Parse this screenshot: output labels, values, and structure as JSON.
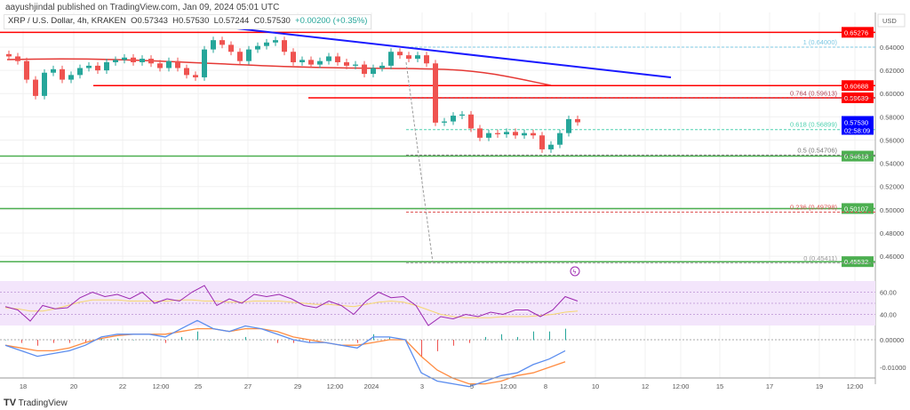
{
  "header": {
    "published": "aayushjindal published on TradingView.com, Jan 09, 2024 05:01 UTC",
    "symbol": "XRP / U.S. Dollar, 4h, KRAKEN",
    "open": "O0.57343",
    "high": "H0.57530",
    "low": "L0.57244",
    "close": "C0.57530",
    "change": "+0.00200 (+0.35%)"
  },
  "currency": "USD",
  "price_ticks": [
    "0.64000",
    "0.62000",
    "0.60000",
    "0.58000",
    "0.56000",
    "0.54000",
    "0.52000",
    "0.50000",
    "0.48000",
    "0.46000"
  ],
  "levels": [
    {
      "label": "0.65276",
      "price": 0.65276,
      "color": "#ff0000",
      "kind": "resistance"
    },
    {
      "label": "0.60688",
      "price": 0.60688,
      "color": "#ff0000",
      "kind": "resistance"
    },
    {
      "label": "0.59639",
      "price": 0.59639,
      "color": "#ff0000",
      "kind": "resistance"
    },
    {
      "label": "0.54618",
      "price": 0.54618,
      "color": "#4caf50",
      "kind": "support"
    },
    {
      "label": "0.50107",
      "price": 0.50107,
      "color": "#4caf50",
      "kind": "support"
    },
    {
      "label": "0.45532",
      "price": 0.45532,
      "color": "#4caf50",
      "kind": "support"
    }
  ],
  "fib": [
    {
      "label": "1 (0.64000)",
      "price": 0.64,
      "color": "#7ec8e3"
    },
    {
      "label": "0.764 (0.59613)",
      "price": 0.59613,
      "color": "#b24a5a"
    },
    {
      "label": "0.618 (0.56899)",
      "price": 0.56899,
      "color": "#4fd1b0"
    },
    {
      "label": "0.5 (0.54706)",
      "price": 0.54706,
      "color": "#777777"
    },
    {
      "label": "0.236 (0.49798)",
      "price": 0.49798,
      "color": "#e05555"
    },
    {
      "label": "0 (0.45411)",
      "price": 0.45411,
      "color": "#999999"
    }
  ],
  "last_price": {
    "price": "0.57530",
    "countdown": "02:58:09",
    "color": "#0000ff"
  },
  "rsi_ticks": [
    "60.00",
    "40.00"
  ],
  "macd_ticks": [
    "0.00000",
    "-0.01000"
  ],
  "time_ticks": [
    "18",
    "20",
    "22",
    "12:00",
    "25",
    "27",
    "29",
    "12:00",
    "2024",
    "3",
    "5",
    "12:00",
    "8",
    "10",
    "12",
    "12:00",
    "15",
    "17",
    "19",
    "12:00"
  ],
  "closes": [
    0.632,
    0.628,
    0.612,
    0.598,
    0.618,
    0.621,
    0.612,
    0.616,
    0.622,
    0.624,
    0.62,
    0.627,
    0.629,
    0.631,
    0.627,
    0.63,
    0.626,
    0.622,
    0.628,
    0.622,
    0.616,
    0.614,
    0.638,
    0.646,
    0.642,
    0.636,
    0.628,
    0.638,
    0.641,
    0.644,
    0.646,
    0.636,
    0.627,
    0.629,
    0.625,
    0.628,
    0.632,
    0.627,
    0.624,
    0.625,
    0.617,
    0.622,
    0.624,
    0.636,
    0.633,
    0.63,
    0.633,
    0.626,
    0.575,
    0.576,
    0.581,
    0.582,
    0.57,
    0.562,
    0.566,
    0.565,
    0.567,
    0.564,
    0.566,
    0.564,
    0.552,
    0.556,
    0.566,
    0.578,
    0.5753
  ],
  "rsi": [
    47,
    44,
    34,
    48,
    45,
    46,
    55,
    60,
    56,
    58,
    54,
    60,
    50,
    54,
    52,
    60,
    66,
    48,
    54,
    50,
    58,
    56,
    58,
    54,
    48,
    46,
    52,
    48,
    40,
    52,
    60,
    55,
    56,
    48,
    30,
    38,
    36,
    40,
    38,
    42,
    40,
    44,
    44,
    38,
    44,
    56,
    52
  ],
  "rsi_ma": [
    46,
    45,
    43,
    43,
    45,
    48,
    51,
    53,
    53,
    53,
    52,
    52,
    52,
    52,
    53,
    53,
    52,
    52,
    51,
    51,
    52,
    52,
    52,
    51,
    50,
    49,
    49,
    48,
    47,
    49,
    51,
    52,
    51,
    48,
    44,
    40,
    38,
    37,
    37,
    37,
    38,
    38,
    38,
    39,
    40,
    42,
    43
  ],
  "macd": [
    -0.002,
    -0.004,
    -0.006,
    -0.005,
    -0.004,
    -0.002,
    0.001,
    0.002,
    0.002,
    0.002,
    0.001,
    0.004,
    0.007,
    0.004,
    0.003,
    0.005,
    0.004,
    0.002,
    0,
    -0.001,
    -0.001,
    -0.002,
    -0.003,
    0.001,
    0.001,
    0,
    -0.012,
    -0.015,
    -0.016,
    -0.017,
    -0.015,
    -0.013,
    -0.012,
    -0.009,
    -0.007,
    -0.004
  ],
  "macd_signal": [
    -0.002,
    -0.003,
    -0.004,
    -0.004,
    -0.003,
    -0.001,
    0.0005,
    0.0015,
    0.002,
    0.002,
    0.002,
    0.003,
    0.004,
    0.004,
    0.003,
    0.004,
    0.004,
    0.003,
    0.001,
    0,
    -0.001,
    -0.002,
    -0.002,
    -0.001,
    0,
    0,
    -0.006,
    -0.011,
    -0.014,
    -0.016,
    -0.016,
    -0.015,
    -0.013,
    -0.012,
    -0.01,
    -0.008
  ],
  "footer": {
    "brand": "TradingView"
  },
  "colors": {
    "up": "#26a69a",
    "down": "#ef5350",
    "trend": "#1a1aff",
    "ma": "#e53935",
    "rsi": "#9c27b0",
    "rsi_ma": "#f5d76e",
    "macd": "#5b8def",
    "signal": "#ff8c42"
  }
}
